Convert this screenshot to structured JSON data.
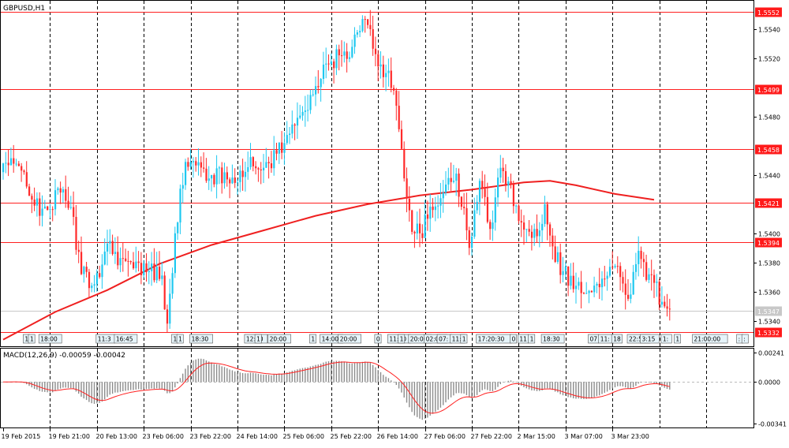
{
  "symbol_label": "GBPUSD,H1",
  "colors": {
    "bull": "#1ec8f0",
    "bear": "#ff2a2a",
    "ma": "#ef2020",
    "level_line": "#ff2020",
    "level_tag_bg": "#ff1a1a",
    "current_tag_bg": "#c8c8c8",
    "grid": "#000000",
    "hist": "#8c8c8c",
    "signal": "#ff2020"
  },
  "chart_data": [
    {
      "type": "candlestick",
      "symbol": "GBPUSD",
      "timeframe": "H1",
      "ylim": [
        1.5323,
        1.5558
      ],
      "y_ticks": [
        "1.5540",
        "1.5520",
        "1.5480",
        "1.5440",
        "1.5400",
        "1.5380",
        "1.5360",
        "1.5340"
      ],
      "levels": [
        {
          "label": "1.5552",
          "value": 1.5552
        },
        {
          "label": "1.5499",
          "value": 1.5499
        },
        {
          "label": "1.5458",
          "value": 1.5458
        },
        {
          "label": "1.5421",
          "value": 1.5421
        },
        {
          "label": "1.5394",
          "value": 1.5394
        },
        {
          "label": "1.5332",
          "value": 1.5332
        }
      ],
      "current_price": {
        "label": "1.5347",
        "value": 1.5347
      },
      "x_ticks": [
        "19 Feb 2015",
        "19 Feb 21:00",
        "20 Feb 13:00",
        "23 Feb 06:00",
        "23 Feb 22:00",
        "24 Feb 14:00",
        "25 Feb 06:00",
        "25 Feb 22:00",
        "26 Feb 14:00",
        "27 Feb 06:00",
        "27 Feb 22:00",
        "2 Mar 15:00",
        "3 Mar 07:00",
        "3 Mar 23:00"
      ],
      "anchors": [
        [
          0,
          1.5448
        ],
        [
          8,
          1.5442
        ],
        [
          14,
          1.5412
        ],
        [
          22,
          1.5428
        ],
        [
          26,
          1.5418
        ],
        [
          30,
          1.5372
        ],
        [
          35,
          1.5365
        ],
        [
          40,
          1.5393
        ],
        [
          45,
          1.5383
        ],
        [
          50,
          1.5376
        ],
        [
          56,
          1.5374
        ],
        [
          61,
          1.5371
        ],
        [
          63,
          1.5338
        ],
        [
          66,
          1.54
        ],
        [
          70,
          1.5449
        ],
        [
          80,
          1.544
        ],
        [
          86,
          1.5437
        ],
        [
          91,
          1.5443
        ],
        [
          96,
          1.5446
        ],
        [
          100,
          1.5445
        ],
        [
          108,
          1.5462
        ],
        [
          112,
          1.5474
        ],
        [
          118,
          1.5495
        ],
        [
          122,
          1.5506
        ],
        [
          126,
          1.5518
        ],
        [
          130,
          1.5522
        ],
        [
          134,
          1.5528
        ],
        [
          139,
          1.5547
        ],
        [
          143,
          1.5523
        ],
        [
          147,
          1.551
        ],
        [
          150,
          1.5498
        ],
        [
          153,
          1.5458
        ],
        [
          157,
          1.5401
        ],
        [
          160,
          1.54
        ],
        [
          163,
          1.541
        ],
        [
          167,
          1.5419
        ],
        [
          171,
          1.5438
        ],
        [
          174,
          1.5441
        ],
        [
          179,
          1.539
        ],
        [
          183,
          1.5436
        ],
        [
          187,
          1.5403
        ],
        [
          191,
          1.5445
        ],
        [
          197,
          1.5419
        ],
        [
          201,
          1.5403
        ],
        [
          205,
          1.5398
        ],
        [
          208,
          1.542
        ],
        [
          211,
          1.5391
        ],
        [
          215,
          1.5374
        ],
        [
          220,
          1.5364
        ],
        [
          224,
          1.5359
        ],
        [
          229,
          1.5363
        ],
        [
          233,
          1.5377
        ],
        [
          237,
          1.537
        ],
        [
          241,
          1.5358
        ],
        [
          244,
          1.5388
        ],
        [
          247,
          1.5368
        ],
        [
          250,
          1.5366
        ],
        [
          253,
          1.5353
        ],
        [
          256,
          1.5348
        ]
      ],
      "moving_average": [
        [
          0,
          1.5327
        ],
        [
          20,
          1.5346
        ],
        [
          40,
          1.5361
        ],
        [
          60,
          1.5379
        ],
        [
          80,
          1.5392
        ],
        [
          100,
          1.5402
        ],
        [
          120,
          1.5412
        ],
        [
          140,
          1.542
        ],
        [
          160,
          1.5426
        ],
        [
          180,
          1.543
        ],
        [
          200,
          1.5435
        ],
        [
          210,
          1.5436
        ],
        [
          220,
          1.5433
        ],
        [
          235,
          1.5427
        ],
        [
          250,
          1.5423
        ]
      ],
      "session_labels": [
        {
          "text": "1",
          "i": 8
        },
        {
          "text": "1",
          "i": 10
        },
        {
          "text": "18:00",
          "i": 14
        },
        {
          "text": "11:3",
          "i": 36
        },
        {
          "text": "16:45",
          "i": 43
        },
        {
          "text": "1",
          "i": 65
        },
        {
          "text": "1",
          "i": 67
        },
        {
          "text": "18:30",
          "i": 72
        },
        {
          "text": "12:00",
          "i": 93
        },
        {
          "text": "1",
          "i": 97
        },
        {
          "text": "20:00",
          "i": 102
        },
        {
          "text": "1",
          "i": 118
        },
        {
          "text": "14:00",
          "i": 122
        },
        {
          "text": "20:00",
          "i": 129
        },
        {
          "text": "0",
          "i": 143
        },
        {
          "text": "11:30",
          "i": 148
        },
        {
          "text": "1",
          "i": 152
        },
        {
          "text": "20:00",
          "i": 156
        },
        {
          "text": "02:00",
          "i": 162
        },
        {
          "text": "07:",
          "i": 167
        },
        {
          "text": "11:",
          "i": 172
        },
        {
          "text": "1",
          "i": 176
        },
        {
          "text": "17:20:30",
          "i": 182
        },
        {
          "text": "0",
          "i": 195
        },
        {
          "text": "11",
          "i": 198
        },
        {
          "text": "1",
          "i": 202
        },
        {
          "text": "18:30",
          "i": 207
        },
        {
          "text": "07",
          "i": 225
        },
        {
          "text": "11:",
          "i": 229
        },
        {
          "text": "18",
          "i": 234
        },
        {
          "text": "22:52",
          "i": 240
        },
        {
          "text": "3:15",
          "i": 245
        },
        {
          "text": "1:",
          "i": 253
        },
        {
          "text": "1",
          "i": 258
        },
        {
          "text": "21:00:00",
          "i": 265
        },
        {
          "text": ":",
          "i": 282
        },
        {
          "text": ":",
          "i": 284
        }
      ]
    },
    {
      "type": "histogram",
      "indicator": "MACD",
      "label": "MACD(12,26,9) -0.00059 -0.00042",
      "ylim": [
        -0.00365,
        0.00265
      ],
      "y_ticks": [
        "0.00241",
        "0.0000",
        "-0.00341"
      ]
    }
  ]
}
